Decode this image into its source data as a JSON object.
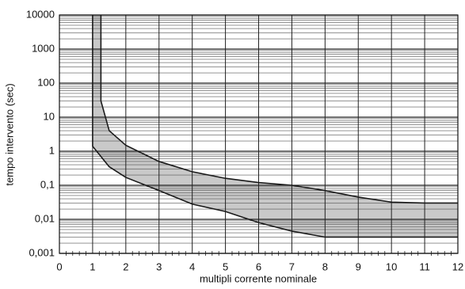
{
  "chart_data": {
    "type": "band",
    "x_label": "multipli corrente nominale",
    "y_label": "tempo intervento (sec)",
    "log_y": true,
    "grid": true,
    "fill_color": "#c9c9c9",
    "line_color": "#1a1a1a",
    "series": [
      {
        "x": [
          1.25,
          1.25,
          1.5,
          2,
          3,
          4,
          5,
          6,
          7,
          8,
          9,
          10,
          11,
          12
        ],
        "values": [
          10000,
          30,
          4,
          1.5,
          0.5,
          0.25,
          0.16,
          0.12,
          0.1,
          0.07,
          0.045,
          0.032,
          0.03,
          0.03
        ]
      },
      {
        "x": [
          1,
          1,
          1.5,
          2,
          3,
          4,
          5,
          6,
          7,
          8,
          9,
          10,
          11,
          12
        ],
        "values": [
          10000,
          1.4,
          0.35,
          0.17,
          0.07,
          0.028,
          0.017,
          0.008,
          0.0045,
          0.003,
          0.003,
          0.003,
          0.003,
          0.003
        ]
      }
    ],
    "xlim": [
      0,
      12
    ],
    "xticks": [
      0,
      1,
      2,
      3,
      4,
      5,
      6,
      7,
      8,
      9,
      10,
      11,
      12
    ],
    "ylim": [
      0.001,
      10000
    ],
    "yticks": [
      {
        "value": 0.001,
        "label": "0,001"
      },
      {
        "value": 0.01,
        "label": "0,01"
      },
      {
        "value": 0.1,
        "label": "0,1"
      },
      1,
      10,
      100,
      1000,
      10000
    ]
  }
}
